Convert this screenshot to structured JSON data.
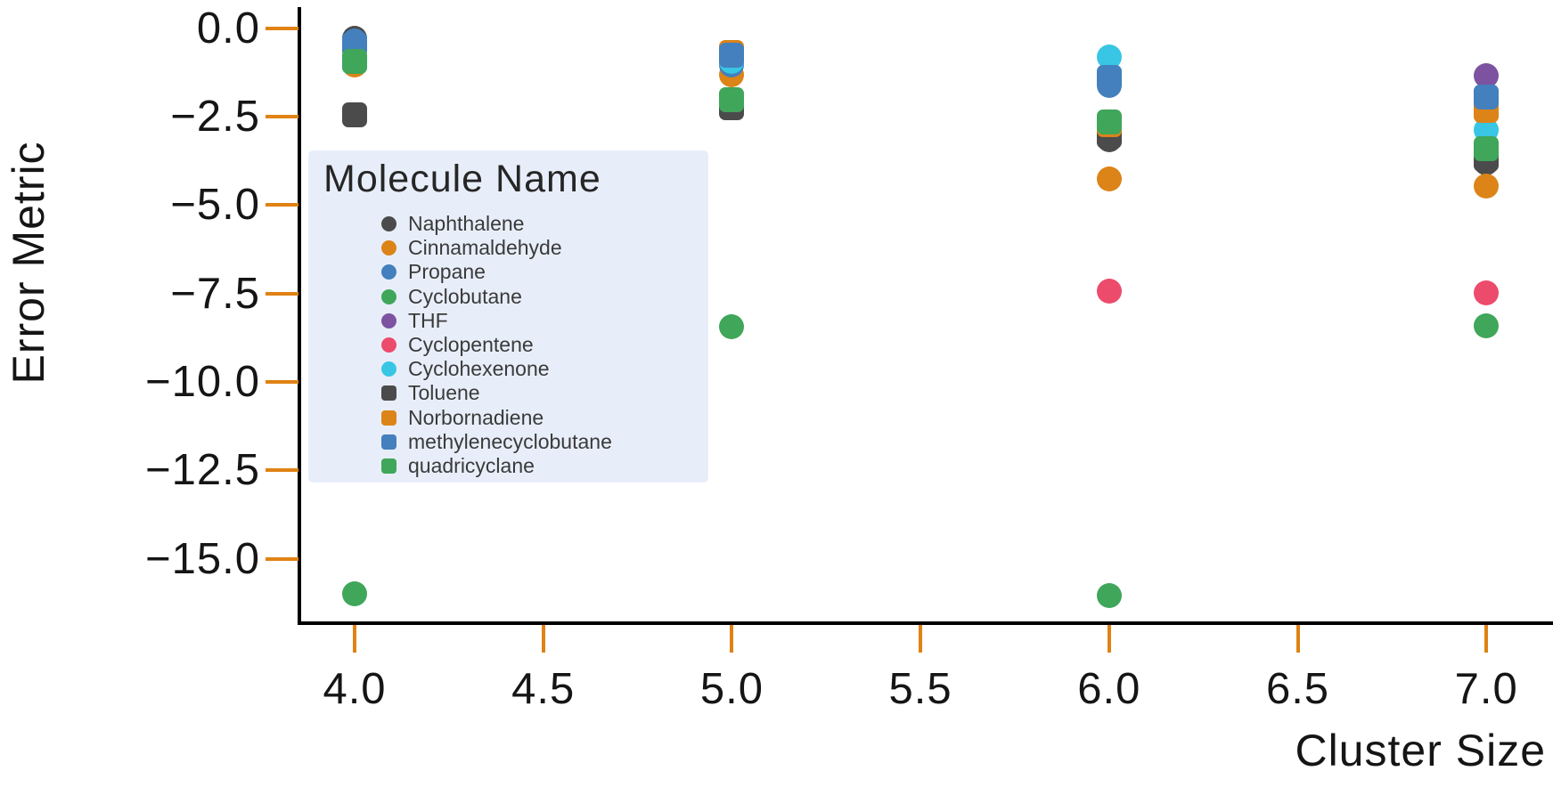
{
  "chart_data": {
    "type": "scatter",
    "title": "",
    "xlabel": "Cluster Size",
    "ylabel": "Error Metric",
    "x_ticks": [
      4.0,
      4.5,
      5.0,
      5.5,
      6.0,
      6.5,
      7.0
    ],
    "y_ticks": [
      0.0,
      -2.5,
      -5.0,
      -7.5,
      -10.0,
      -12.5,
      -15.0
    ],
    "xlim": [
      3.85,
      7.18
    ],
    "ylim": [
      -16.9,
      0.6
    ],
    "grid": false,
    "legend_position": "upper-left-inside",
    "legend_title": "Molecule Name",
    "axis_color": "#000000",
    "tick_color": "#e08214",
    "legend_bg": "#e8eef9",
    "series": [
      {
        "name": "Naphthalene",
        "marker": "circle",
        "color": "#4b4b4b",
        "points": [
          [
            4,
            -0.28
          ],
          [
            6,
            -3.15
          ],
          [
            7,
            -3.81
          ]
        ]
      },
      {
        "name": "Cinnamaldehyde",
        "marker": "circle",
        "color": "#dc8418",
        "points": [
          [
            4,
            -1.05
          ],
          [
            5,
            -1.32
          ],
          [
            6,
            -4.25
          ],
          [
            7,
            -4.47
          ]
        ]
      },
      {
        "name": "Propane",
        "marker": "circle",
        "color": "#4380bd",
        "points": [
          [
            4,
            -0.35
          ],
          [
            5,
            -1.04
          ],
          [
            6,
            -1.62
          ],
          [
            7,
            -1.88
          ]
        ]
      },
      {
        "name": "Cyclobutane",
        "marker": "circle",
        "color": "#3fa65a",
        "points": [
          [
            4,
            -16.0
          ],
          [
            5,
            -8.45
          ],
          [
            6,
            -16.05
          ],
          [
            7,
            -8.42
          ]
        ]
      },
      {
        "name": "THF",
        "marker": "circle",
        "color": "#7c52a1",
        "points": [
          [
            7,
            -1.34
          ]
        ]
      },
      {
        "name": "Cyclopentene",
        "marker": "circle",
        "color": "#ec4b6c",
        "points": [
          [
            6,
            -7.43
          ],
          [
            7,
            -7.49
          ]
        ]
      },
      {
        "name": "Cyclohexenone",
        "marker": "circle",
        "color": "#38c6e4",
        "points": [
          [
            5,
            -0.94
          ],
          [
            6,
            -0.82
          ],
          [
            7,
            -2.88
          ]
        ]
      },
      {
        "name": "Toluene",
        "marker": "square",
        "color": "#4b4b4b",
        "points": [
          [
            4,
            -2.45
          ],
          [
            5,
            -2.25
          ],
          [
            6,
            -3.05
          ],
          [
            7,
            -3.71
          ]
        ]
      },
      {
        "name": "Norbornadiene",
        "marker": "square",
        "color": "#dc8418",
        "points": [
          [
            5,
            -0.69
          ],
          [
            6,
            -2.73
          ],
          [
            7,
            -2.33
          ]
        ]
      },
      {
        "name": "methylenecyclobutane",
        "marker": "square",
        "color": "#4380bd",
        "points": [
          [
            4,
            -0.45
          ],
          [
            5,
            -0.76
          ],
          [
            6,
            -1.39
          ],
          [
            7,
            -1.95
          ]
        ]
      },
      {
        "name": "quadricyclane",
        "marker": "square",
        "color": "#3fa65a",
        "points": [
          [
            4,
            -0.95
          ],
          [
            5,
            -2.02
          ],
          [
            6,
            -2.64
          ],
          [
            7,
            -3.41
          ]
        ]
      }
    ]
  }
}
